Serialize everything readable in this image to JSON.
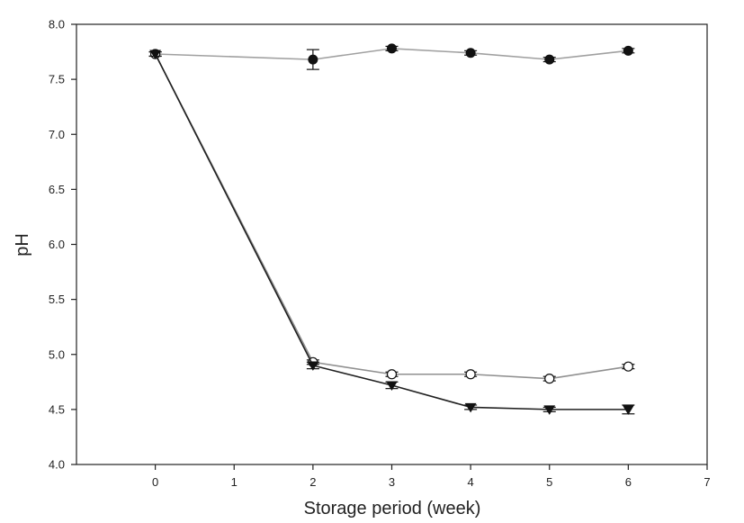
{
  "chart_data": {
    "type": "line",
    "title": "",
    "xlabel": "Storage period (week)",
    "ylabel": "pH",
    "xlim": [
      -1,
      7
    ],
    "ylim": [
      4.0,
      8.0
    ],
    "x_ticks": [
      0,
      1,
      2,
      3,
      4,
      5,
      6,
      7
    ],
    "x_tick_labels": [
      "0",
      "1",
      "2",
      "3",
      "4",
      "5",
      "6",
      "7"
    ],
    "y_ticks": [
      4.0,
      4.5,
      5.0,
      5.5,
      6.0,
      6.5,
      7.0,
      7.5,
      8.0
    ],
    "y_tick_labels": [
      "4.0",
      "4.5",
      "5.0",
      "5.5",
      "6.0",
      "6.5",
      "7.0",
      "7.5",
      "8.0"
    ],
    "grid": false,
    "legend": "none",
    "series": [
      {
        "marker": "filled-circle",
        "line_color": "#a0a0a0",
        "x": [
          0,
          2,
          3,
          4,
          5,
          6
        ],
        "values": [
          7.73,
          7.68,
          7.78,
          7.74,
          7.68,
          7.76
        ],
        "errors": [
          0.02,
          0.09,
          0.02,
          0.02,
          0.02,
          0.02
        ]
      },
      {
        "marker": "open-circle",
        "line_color": "#909090",
        "x": [
          0,
          2,
          3,
          4,
          5,
          6
        ],
        "values": [
          7.73,
          4.93,
          4.82,
          4.82,
          4.78,
          4.89
        ],
        "errors": [
          0.02,
          0.02,
          0.02,
          0.02,
          0.02,
          0.02
        ]
      },
      {
        "marker": "filled-triangle-down",
        "line_color": "#202020",
        "x": [
          0,
          2,
          3,
          4,
          5,
          6
        ],
        "values": [
          7.73,
          4.9,
          4.72,
          4.52,
          4.5,
          4.5
        ],
        "errors": [
          0.02,
          0.03,
          0.03,
          0.02,
          0.02,
          0.04
        ]
      }
    ]
  }
}
